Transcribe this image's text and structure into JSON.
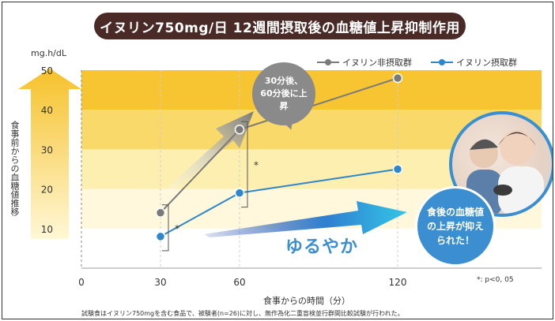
{
  "title": "イヌリン750mg/日 12週間摂取後の血糖値上昇抑制作用",
  "unit": "mg.h/dL",
  "ylabel": "食事前からの血糖値推移",
  "xlabel": "食事からの時間（分）",
  "significance": "*: p<0, 05",
  "note": "試験食はイヌリン750mgを含む食品で、被験者(n=26)に対し、無作為化二重盲検並行群間比較試験が行われた。",
  "bubble_gray": "30分後、60分後に上昇",
  "bubble_blue": "食後の血糖値の上昇が抑えられた！",
  "arrow_text": "ゆるやか",
  "colors": {
    "title_bg": "#4a2a26",
    "gray_series": "#7a7a7a",
    "blue_series": "#2f86c8",
    "band_dark": "#f7c531",
    "band_light": "#fdf3c7"
  },
  "chart_data": {
    "type": "line",
    "x": [
      30,
      60,
      120
    ],
    "x_ticks": [
      0,
      30,
      60,
      120
    ],
    "y_ticks": [
      10,
      20,
      30,
      40,
      50
    ],
    "ylim": [
      0,
      50
    ],
    "series": [
      {
        "name": "イヌリン非摂取群",
        "values": [
          14,
          35,
          48
        ]
      },
      {
        "name": "イヌリン摂取群",
        "values": [
          8,
          19,
          25
        ]
      }
    ],
    "significance_marks": [
      {
        "x": 30,
        "label": "*"
      },
      {
        "x": 60,
        "label": "*"
      }
    ]
  }
}
